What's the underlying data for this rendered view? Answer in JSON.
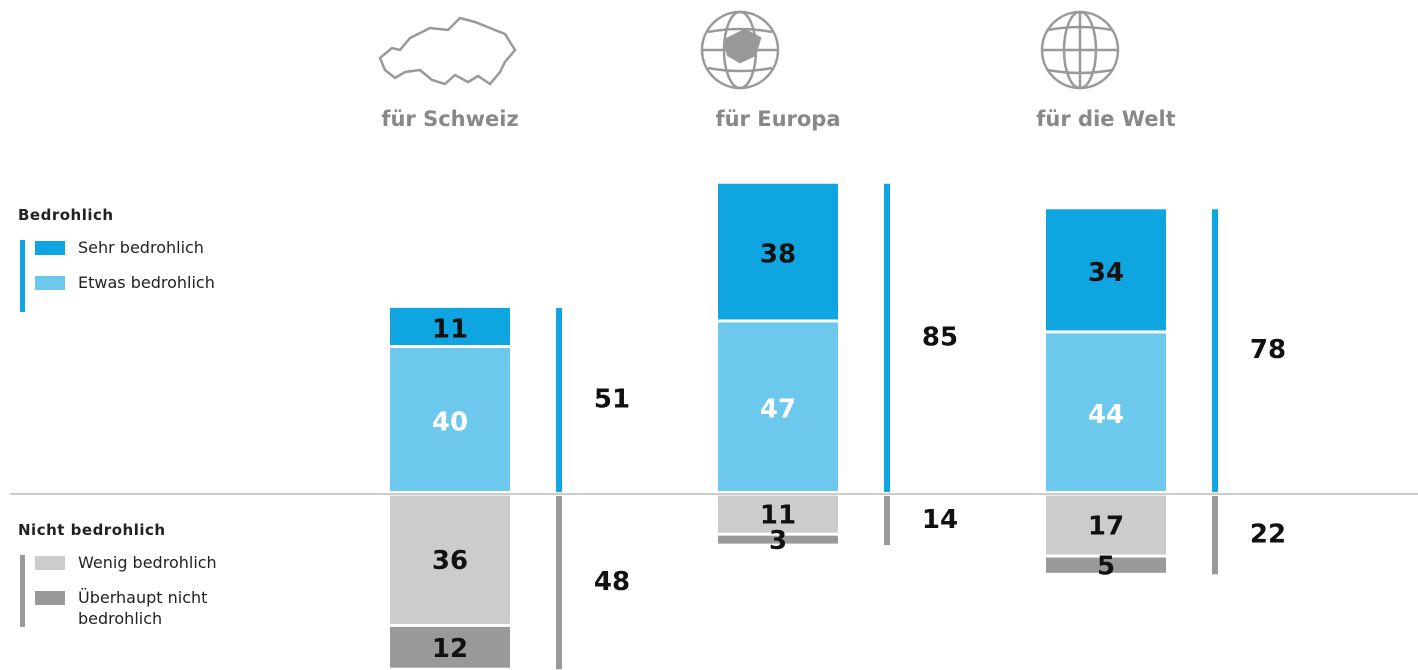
{
  "chart_data": {
    "type": "diverging_stacked_bar",
    "categories": [
      "für Schweiz",
      "für Europa",
      "für die Welt"
    ],
    "groups": [
      {
        "name": "Bedrohlich",
        "color": "#0fa5e0",
        "side": "up",
        "totals": [
          51,
          85,
          78
        ]
      },
      {
        "name": "Nicht bedrohlich",
        "color": "#999999",
        "side": "down",
        "totals": [
          48,
          14,
          22
        ]
      }
    ],
    "series": [
      {
        "name": "Sehr bedrohlich",
        "group": 0,
        "color": "#0fa5e0",
        "label_color": "#111111",
        "values": [
          11,
          38,
          34
        ]
      },
      {
        "name": "Etwas bedrohlich",
        "group": 0,
        "color": "#6cc8ed",
        "label_color": "#ffffff",
        "values": [
          40,
          47,
          44
        ]
      },
      {
        "name": "Wenig bedrohlich",
        "group": 1,
        "color": "#cccccc",
        "label_color": "#111111",
        "values": [
          36,
          11,
          17
        ]
      },
      {
        "name": "Überhaupt nicht bedrohlich",
        "group": 1,
        "color": "#999999",
        "label_color": "#111111",
        "values": [
          12,
          3,
          5
        ]
      }
    ]
  }
}
